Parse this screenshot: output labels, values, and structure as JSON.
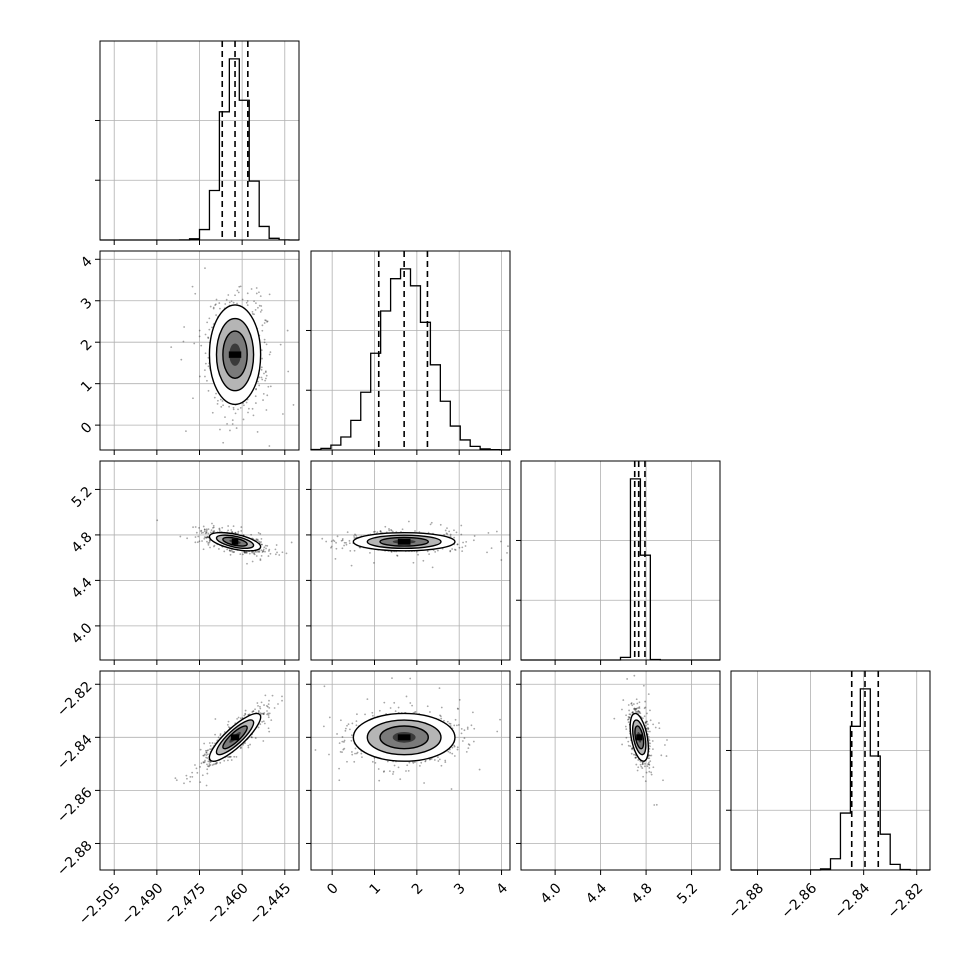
{
  "chart_data": [
    {
      "panel": "hist-p0",
      "type": "histogram",
      "xlim": [
        -2.51,
        -2.44
      ],
      "hist_shape": {
        "center": -2.4625,
        "sd": 0.0045
      },
      "quantiles": [
        -2.467,
        -2.4625,
        -2.458
      ]
    },
    {
      "panel": "hist-p1",
      "type": "histogram",
      "xlim": [
        -0.5,
        4.2
      ],
      "xticks": [
        "0",
        "1",
        "2",
        "3",
        "4"
      ],
      "xtick_values": [
        0,
        1,
        2,
        3,
        4
      ],
      "hist_shape": {
        "center": 1.7,
        "sd": 0.6
      },
      "quantiles": [
        1.1,
        1.7,
        2.25
      ]
    },
    {
      "panel": "hist-p2",
      "type": "histogram",
      "xlim": [
        3.7,
        5.45
      ],
      "xticks": [
        "4.0",
        "4.4",
        "4.8",
        "5.2"
      ],
      "xtick_values": [
        4.0,
        4.4,
        4.8,
        5.2
      ],
      "hist_shape": {
        "center": 4.74,
        "sd": 0.04
      },
      "quantiles": [
        4.7,
        4.735,
        4.79
      ]
    },
    {
      "panel": "hist-p3",
      "type": "histogram",
      "xlim": [
        -2.89,
        -2.815
      ],
      "xticks": [
        "−2.88",
        "−2.86",
        "−2.84",
        "−2.82"
      ],
      "xtick_values": [
        -2.88,
        -2.86,
        -2.84,
        -2.82
      ],
      "hist_shape": {
        "center": -2.84,
        "sd": 0.0045
      },
      "quantiles": [
        -2.8445,
        -2.8395,
        -2.8345
      ]
    },
    {
      "panel": "p0-vs-p1",
      "type": "scatter",
      "xlim": [
        -2.51,
        -2.44
      ],
      "ylim": [
        -0.6,
        4.2
      ],
      "yticks": [
        "0",
        "1",
        "2",
        "3",
        "4"
      ],
      "ytick_values": [
        0,
        1,
        2,
        3,
        4
      ],
      "center": [
        -2.4625,
        1.7
      ],
      "sd": [
        0.0045,
        0.6
      ],
      "rho": 0.0
    },
    {
      "panel": "p0-vs-p2",
      "type": "scatter",
      "xlim": [
        -2.51,
        -2.44
      ],
      "ylim": [
        3.7,
        5.45
      ],
      "yticks": [
        "4.0",
        "4.4",
        "4.8",
        "5.2"
      ],
      "ytick_values": [
        4.0,
        4.4,
        4.8,
        5.2
      ],
      "center": [
        -2.4625,
        4.74
      ],
      "sd": [
        0.0045,
        0.04
      ],
      "rho": -0.55
    },
    {
      "panel": "p1-vs-p2",
      "type": "scatter",
      "xlim": [
        -0.5,
        4.2
      ],
      "ylim": [
        3.7,
        5.45
      ],
      "center": [
        1.7,
        4.74
      ],
      "sd": [
        0.6,
        0.04
      ],
      "rho": 0.0
    },
    {
      "panel": "p0-vs-p3",
      "type": "scatter",
      "xlim": [
        -2.51,
        -2.44
      ],
      "ylim": [
        -2.89,
        -2.815
      ],
      "xticks": [
        "−2.505",
        "−2.490",
        "−2.475",
        "−2.460",
        "−2.445"
      ],
      "xtick_values": [
        -2.505,
        -2.49,
        -2.475,
        -2.46,
        -2.445
      ],
      "yticks": [
        "−2.82",
        "−2.84",
        "−2.86",
        "−2.88"
      ],
      "ytick_values": [
        -2.82,
        -2.84,
        -2.86,
        -2.88
      ],
      "center": [
        -2.4625,
        -2.84
      ],
      "sd": [
        0.0045,
        0.0045
      ],
      "rho": 0.85
    },
    {
      "panel": "p1-vs-p3",
      "type": "scatter",
      "xlim": [
        -0.5,
        4.2
      ],
      "ylim": [
        -2.89,
        -2.815
      ],
      "center": [
        1.7,
        -2.84
      ],
      "sd": [
        0.6,
        0.0045
      ],
      "rho": 0.0
    },
    {
      "panel": "p2-vs-p3",
      "type": "scatter",
      "xlim": [
        3.7,
        5.45
      ],
      "ylim": [
        -2.89,
        -2.815
      ],
      "center": [
        4.74,
        -2.84
      ],
      "sd": [
        0.04,
        0.0045
      ],
      "rho": -0.45
    }
  ]
}
